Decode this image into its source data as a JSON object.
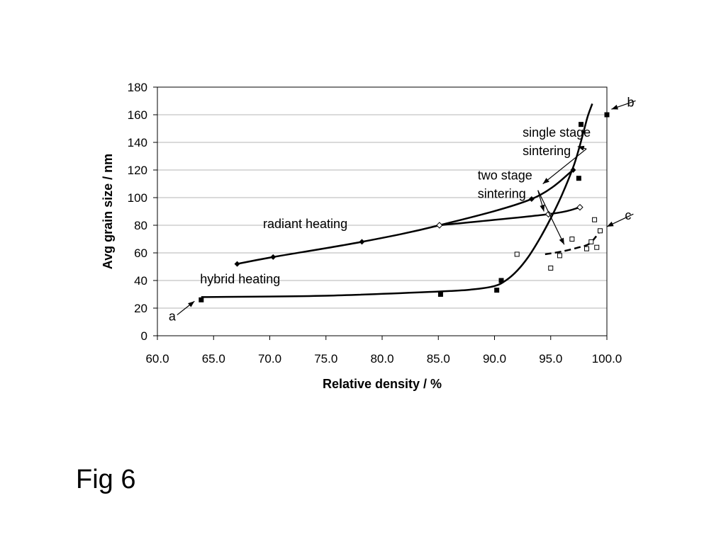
{
  "figure_label": "Fig 6",
  "chart_data": {
    "type": "scatter",
    "xlabel": "Relative density / %",
    "ylabel": "Avg grain size / nm",
    "xlim": [
      60,
      100
    ],
    "ylim": [
      0,
      180
    ],
    "x_ticks": [
      "60.0",
      "65.0",
      "70.0",
      "75.0",
      "80.0",
      "85.0",
      "90.0",
      "95.0",
      "100.0"
    ],
    "y_ticks": [
      "0",
      "20",
      "40",
      "60",
      "80",
      "100",
      "120",
      "140",
      "160",
      "180"
    ],
    "grid": "horizontal",
    "series": [
      {
        "name": "single stage sintering",
        "marker": "filled-diamond",
        "line": "solid",
        "x": [
          67.1,
          70.3,
          78.2,
          85.1,
          93.3,
          97.0
        ],
        "y": [
          52,
          57,
          68,
          80,
          99,
          120
        ]
      },
      {
        "name": "two stage sintering",
        "marker": "open-diamond",
        "line": "solid",
        "x": [
          85.1,
          94.8,
          97.6
        ],
        "y": [
          80,
          88,
          93
        ]
      },
      {
        "name": "hybrid heating",
        "marker": "filled-square",
        "line": "solid",
        "x": [
          63.9,
          85.2,
          90.2,
          90.6,
          97.5,
          97.7,
          100.0
        ],
        "y": [
          26,
          30,
          33,
          40,
          114,
          153,
          160
        ],
        "curve": {
          "x": [
            63.9,
            75,
            85,
            88,
            90,
            91,
            92,
            93,
            94,
            95,
            96,
            97,
            97.5,
            98,
            98.3,
            98.7
          ],
          "y": [
            28,
            29,
            32,
            33.5,
            36,
            40,
            47,
            57,
            70,
            85,
            102,
            122,
            135,
            150,
            159,
            168
          ]
        }
      },
      {
        "name": "radiant heating",
        "marker": "open-square",
        "line": "dashed",
        "x": [
          92.0,
          95.0,
          95.8,
          96.9,
          98.2,
          98.6,
          98.9,
          99.1,
          99.4
        ],
        "y": [
          59,
          49,
          58,
          70,
          63,
          68,
          84,
          64,
          76
        ],
        "curve": {
          "x": [
            94.5,
            96,
            97.5,
            98.5,
            99.5
          ],
          "y": [
            59,
            61,
            64,
            67,
            77
          ]
        }
      }
    ],
    "annotations": [
      {
        "text": "single stage",
        "text2": "sintering",
        "label_at": [
          92.5,
          144
        ],
        "targets": [
          [
            97.4,
            137
          ],
          [
            94.3,
            110
          ]
        ]
      },
      {
        "text": "two stage",
        "text2": "sintering",
        "label_at": [
          88.5,
          113
        ],
        "targets": [
          [
            94.4,
            90
          ],
          [
            96.2,
            66
          ]
        ]
      },
      {
        "text": "radiant heating",
        "label_at": [
          69.4,
          78
        ]
      },
      {
        "text": "hybrid heating",
        "label_at": [
          63.8,
          38
        ]
      },
      {
        "text": "a",
        "label_at": [
          61.0,
          11
        ],
        "targets": [
          [
            63.3,
            25
          ]
        ]
      },
      {
        "text": "b",
        "label_at": [
          101.8,
          166
        ],
        "targets": [
          [
            100.4,
            164
          ]
        ]
      },
      {
        "text": "c",
        "label_at": [
          101.6,
          84
        ],
        "targets": [
          [
            100.0,
            79
          ]
        ]
      }
    ]
  }
}
